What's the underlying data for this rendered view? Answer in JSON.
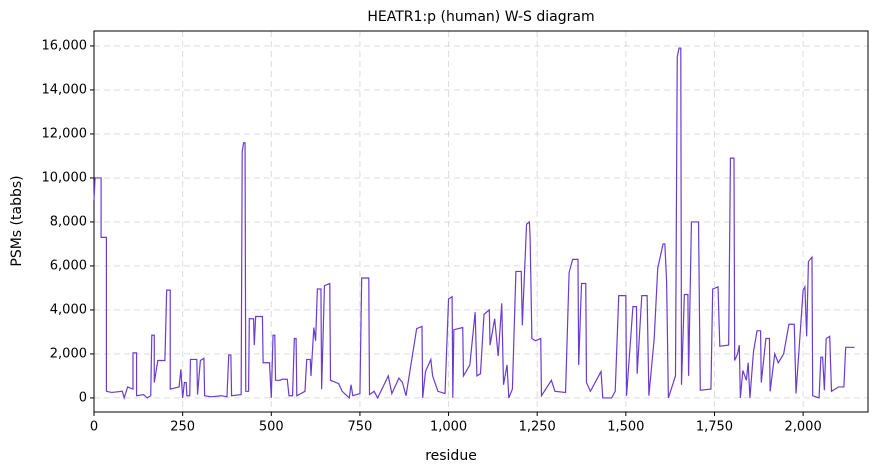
{
  "chart_data": {
    "type": "line",
    "title": "HEATR1:p (human) W-S diagram",
    "x_label": "residue",
    "y_label": "PSMs (tabbs)",
    "color": "#6a3ccf",
    "grid": true,
    "xlim": [
      0,
      2183
    ],
    "ylim": [
      -640,
      16680
    ],
    "xticks": [
      0,
      250,
      500,
      750,
      {
        "value": 1000,
        "label": "1,000"
      },
      {
        "value": 1250,
        "label": "1,250"
      },
      {
        "value": 1500,
        "label": "1,500"
      },
      {
        "value": 1750,
        "label": "1,750"
      },
      {
        "value": 2000,
        "label": "2,000"
      }
    ],
    "yticks": [
      0,
      {
        "value": 2000,
        "label": "2,000"
      },
      {
        "value": 4000,
        "label": "4,000"
      },
      {
        "value": 6000,
        "label": "6,000"
      },
      {
        "value": 8000,
        "label": "8,000"
      },
      {
        "value": 10000,
        "label": "10,000"
      },
      {
        "value": 12000,
        "label": "12,000"
      },
      {
        "value": 14000,
        "label": "14,000"
      },
      {
        "value": 16000,
        "label": "16,000"
      }
    ],
    "x": [
      0,
      3,
      20,
      20,
      35,
      35,
      50,
      80,
      85,
      95,
      110,
      110,
      120,
      120,
      140,
      150,
      160,
      163,
      170,
      170,
      180,
      200,
      205,
      215,
      215,
      240,
      245,
      250,
      255,
      260,
      262,
      270,
      272,
      290,
      292,
      300,
      310,
      312,
      330,
      360,
      375,
      380,
      386,
      388,
      415,
      418,
      422,
      426,
      428,
      436,
      438,
      450,
      452,
      456,
      475,
      477,
      495,
      500,
      505,
      510,
      512,
      525,
      530,
      545,
      550,
      560,
      565,
      570,
      572,
      595,
      600,
      610,
      612,
      620,
      625,
      630,
      640,
      642,
      650,
      665,
      667,
      690,
      700,
      720,
      725,
      730,
      750,
      755,
      775,
      777,
      790,
      800,
      830,
      840,
      860,
      870,
      880,
      910,
      925,
      927,
      935,
      950,
      955,
      970,
      990,
      1000,
      1010,
      1012,
      1015,
      1040,
      1042,
      1060,
      1075,
      1080,
      1090,
      1100,
      1115,
      1117,
      1130,
      1140,
      1150,
      1155,
      1165,
      1170,
      1180,
      1190,
      1205,
      1208,
      1220,
      1228,
      1230,
      1235,
      1245,
      1260,
      1262,
      1290,
      1300,
      1330,
      1340,
      1350,
      1365,
      1367,
      1375,
      1387,
      1389,
      1400,
      1430,
      1435,
      1460,
      1470,
      1480,
      1500,
      1502,
      1520,
      1530,
      1532,
      1545,
      1560,
      1565,
      1580,
      1590,
      1605,
      1610,
      1615,
      1620,
      1640,
      1645,
      1650,
      1655,
      1657,
      1665,
      1675,
      1677,
      1685,
      1705,
      1710,
      1740,
      1745,
      1760,
      1765,
      1790,
      1795,
      1805,
      1807,
      1815,
      1820,
      1823,
      1830,
      1840,
      1845,
      1850,
      1860,
      1870,
      1880,
      1882,
      1895,
      1905,
      1907,
      1920,
      1930,
      1945,
      1960,
      1975,
      1980,
      2000,
      2005,
      2010,
      2015,
      2025,
      2027,
      2045,
      2050,
      2055,
      2060,
      2065,
      2075,
      2080,
      2100,
      2115,
      2120,
      2145
    ],
    "values": [
      9000,
      10000,
      10000,
      7300,
      7300,
      300,
      250,
      300,
      0,
      500,
      400,
      2050,
      2050,
      100,
      150,
      0,
      100,
      2850,
      2850,
      700,
      1700,
      1700,
      4900,
      4900,
      400,
      500,
      1300,
      0,
      700,
      700,
      100,
      100,
      1750,
      1750,
      150,
      1700,
      1800,
      100,
      50,
      100,
      50,
      1950,
      1950,
      100,
      150,
      11200,
      11600,
      11600,
      300,
      300,
      3600,
      3600,
      2400,
      3700,
      3700,
      1600,
      1600,
      0,
      2850,
      2850,
      800,
      800,
      850,
      850,
      100,
      100,
      2700,
      2700,
      100,
      300,
      1750,
      1750,
      1000,
      3200,
      2600,
      4950,
      4950,
      400,
      5100,
      5200,
      800,
      650,
      300,
      0,
      600,
      100,
      200,
      5450,
      5450,
      150,
      300,
      0,
      1000,
      200,
      900,
      700,
      100,
      3150,
      3250,
      0,
      1200,
      1750,
      1000,
      300,
      200,
      4500,
      4600,
      0,
      3100,
      3200,
      1000,
      1500,
      3900,
      1000,
      1100,
      3800,
      4000,
      2400,
      3600,
      1900,
      4300,
      600,
      1500,
      0,
      400,
      5750,
      5750,
      3300,
      7900,
      8000,
      7300,
      2700,
      2600,
      2700,
      100,
      800,
      300,
      250,
      5700,
      6300,
      6300,
      1500,
      5200,
      5200,
      700,
      300,
      1200,
      0,
      0,
      300,
      4650,
      4650,
      100,
      4150,
      4150,
      1100,
      4650,
      4650,
      100,
      2700,
      5900,
      7000,
      7000,
      5300,
      0,
      1000,
      15500,
      15900,
      15900,
      600,
      4700,
      4700,
      1000,
      8000,
      8000,
      350,
      400,
      4950,
      5050,
      2350,
      2400,
      10900,
      10900,
      1700,
      2000,
      2400,
      0,
      1250,
      800,
      1600,
      0,
      2100,
      3050,
      3050,
      700,
      2700,
      2700,
      300,
      2000,
      1600,
      2000,
      3350,
      3350,
      200,
      4900,
      5050,
      2800,
      6200,
      6400,
      100,
      0,
      1850,
      1850,
      350,
      2700,
      2800,
      300,
      500,
      500,
      2300,
      2300
    ]
  }
}
